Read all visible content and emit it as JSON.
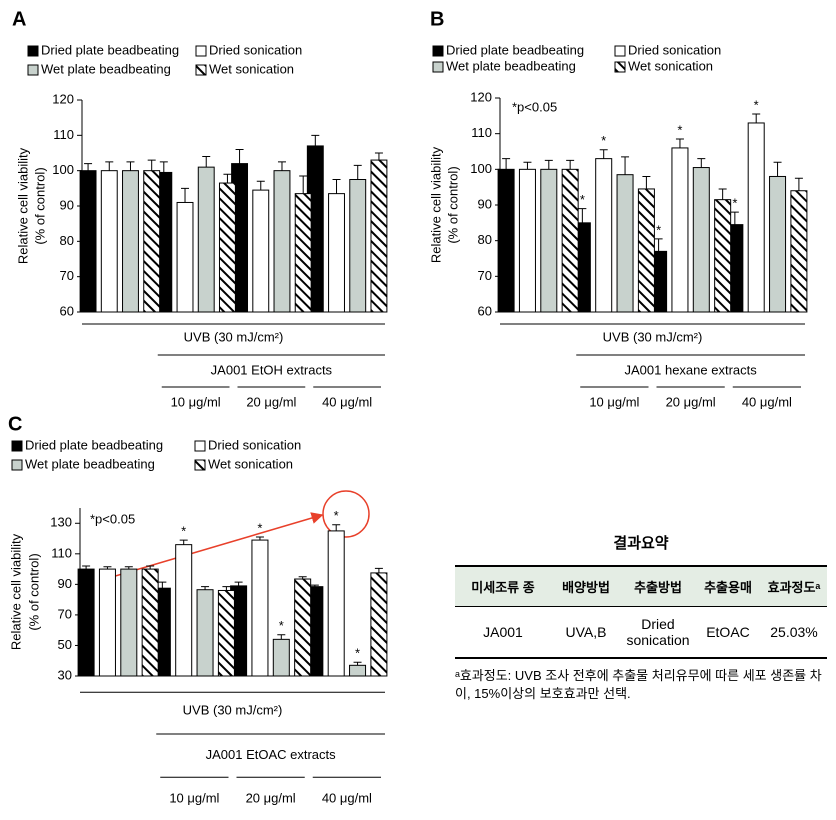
{
  "chart_data": [
    {
      "type": "bar",
      "panel_label": "A",
      "categories": [
        null,
        "10 μg/ml",
        "20 μg/ml",
        "40 μg/ml"
      ],
      "series": [
        {
          "name": "Dried plate beadbeating",
          "color": "#000000",
          "values": [
            100,
            99.5,
            102,
            107
          ],
          "errors": [
            2,
            3,
            4,
            3
          ]
        },
        {
          "name": "Dried sonication",
          "color": "#ffffff",
          "values": [
            100,
            91,
            94.5,
            93.5
          ],
          "errors": [
            2.5,
            4,
            2.5,
            4
          ]
        },
        {
          "name": "Wet plate beadbeating",
          "color": "#c8d2cd",
          "values": [
            100,
            101,
            100,
            97.5
          ],
          "errors": [
            2.5,
            3,
            2.5,
            4
          ]
        },
        {
          "name": "Wet sonication",
          "color": "#000000",
          "hatch": true,
          "values": [
            100,
            96.5,
            93.5,
            103
          ],
          "errors": [
            3,
            2.5,
            5,
            2
          ]
        }
      ],
      "ylabel": [
        "Relative cell viability",
        "(% of control)"
      ],
      "ylim": [
        60,
        120
      ],
      "yticks": [
        60,
        70,
        80,
        90,
        100,
        110,
        120
      ],
      "treatment_label": "UVB (30 mJ/cm²)",
      "extract_label": "JA001 EtOH extracts"
    },
    {
      "type": "bar",
      "panel_label": "B",
      "categories": [
        null,
        "10 μg/ml",
        "20 μg/ml",
        "40 μg/ml"
      ],
      "series": [
        {
          "name": "Dried plate beadbeating",
          "color": "#000000",
          "values": [
            100,
            85,
            77,
            84.5
          ],
          "errors": [
            3,
            4,
            3.5,
            3.5
          ]
        },
        {
          "name": "Dried sonication",
          "color": "#ffffff",
          "values": [
            100,
            103,
            106,
            113
          ],
          "errors": [
            2,
            2.5,
            2.5,
            2.5
          ]
        },
        {
          "name": "Wet plate beadbeating",
          "color": "#c8d2cd",
          "values": [
            100,
            98.5,
            100.5,
            98
          ],
          "errors": [
            2.5,
            5,
            2.5,
            4
          ]
        },
        {
          "name": "Wet sonication",
          "color": "#000000",
          "hatch": true,
          "values": [
            100,
            94.5,
            91.5,
            94
          ],
          "errors": [
            2.5,
            3.5,
            3,
            3.5
          ]
        }
      ],
      "ylabel": [
        "Relative cell viability",
        "(% of control)"
      ],
      "ylim": [
        60,
        120
      ],
      "yticks": [
        60,
        70,
        80,
        90,
        100,
        110,
        120
      ],
      "note": "*p<0.05",
      "annotations": [
        {
          "text": "*",
          "series": 0,
          "category": 1
        },
        {
          "text": "*",
          "series": 1,
          "category": 1
        },
        {
          "text": "*",
          "series": 0,
          "category": 2
        },
        {
          "text": "*",
          "series": 1,
          "category": 2
        },
        {
          "text": "*",
          "series": 0,
          "category": 3
        },
        {
          "text": "*",
          "series": 1,
          "category": 3
        }
      ],
      "treatment_label": "UVB (30 mJ/cm²)",
      "extract_label": "JA001 hexane extracts"
    },
    {
      "type": "bar",
      "panel_label": "C",
      "categories": [
        null,
        "10 μg/ml",
        "20 μg/ml",
        "40 μg/ml"
      ],
      "series": [
        {
          "name": "Dried plate beadbeating",
          "color": "#000000",
          "values": [
            100,
            87.5,
            89,
            88.5
          ],
          "errors": [
            2,
            4,
            2.5,
            1
          ]
        },
        {
          "name": "Dried sonication",
          "color": "#ffffff",
          "values": [
            100,
            116,
            119,
            125
          ],
          "errors": [
            1.5,
            3,
            2,
            4
          ]
        },
        {
          "name": "Wet plate beadbeating",
          "color": "#c8d2cd",
          "values": [
            100,
            86.5,
            54,
            37
          ],
          "errors": [
            1.5,
            2,
            3,
            2
          ]
        },
        {
          "name": "Wet sonication",
          "color": "#000000",
          "hatch": true,
          "values": [
            100,
            86,
            93.5,
            97.5
          ],
          "errors": [
            2,
            2.5,
            1.5,
            3
          ]
        }
      ],
      "ylabel": [
        "Relative cell viability",
        "(% of control)"
      ],
      "ylim": [
        30,
        140
      ],
      "yticks": [
        30,
        50,
        70,
        90,
        110,
        130
      ],
      "note": "*p<0.05",
      "annotations": [
        {
          "text": "*",
          "series": 1,
          "category": 1
        },
        {
          "text": "*",
          "series": 1,
          "category": 2
        },
        {
          "text": "*",
          "series": 2,
          "category": 2
        },
        {
          "text": "*",
          "series": 1,
          "category": 3
        },
        {
          "text": "*",
          "series": 2,
          "category": 3
        }
      ],
      "treatment_label": "UVB (30 mJ/cm²)",
      "extract_label": "JA001 EtOAC extracts"
    }
  ],
  "summary_table": {
    "title": "결과요약",
    "headers": [
      "미세조류 종",
      "배양방법",
      "추출방법",
      "추출용매",
      "효과정도ᵃ"
    ],
    "rows": [
      [
        "JA001",
        "UVA,B",
        "Dried sonication",
        "EtOAC",
        "25.03%"
      ]
    ],
    "footnote": "ᵃ효과정도: UVB 조사 전후에 추출물 처리유무에 따른 세포 생존률 차이, 15%이상의 보호효과만 선택."
  }
}
